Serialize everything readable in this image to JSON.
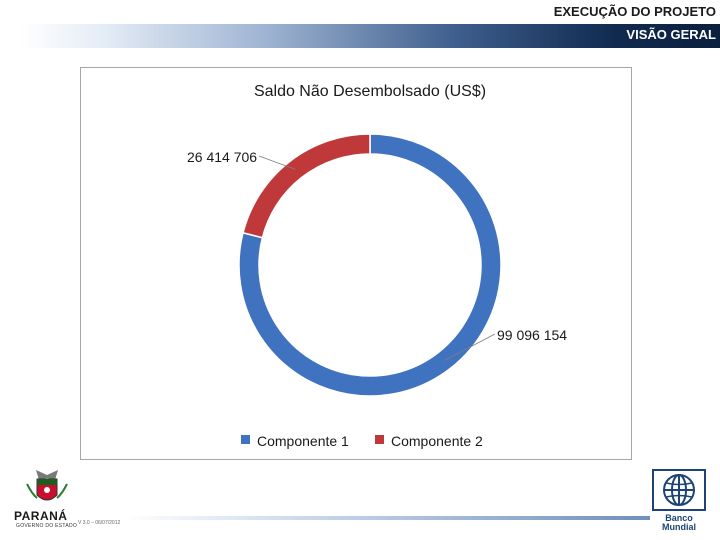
{
  "header": {
    "title": "EXECUÇÃO DO PROJETO",
    "subtitle": "VISÃO GERAL"
  },
  "footer": {
    "left_logo_name": "PARANÁ",
    "left_logo_sub": "GOVERNO DO ESTADO",
    "version": "V 3.0 – 06/07/2012",
    "right_logo_line1": "Banco",
    "right_logo_line2": "Mundial"
  },
  "colors": {
    "componente_1": "#3f72bf",
    "componente_2": "#c0393a",
    "header_dark": "#0b1f3d"
  },
  "chart_data": {
    "type": "pie",
    "variant": "doughnut",
    "title": "Saldo Não Desembolsado (US$)",
    "series": [
      {
        "name": "Componente 1",
        "value": 99096154,
        "label": "99 096 154"
      },
      {
        "name": "Componente 2",
        "value": 26414706,
        "label": "26 414 706"
      }
    ],
    "legend_position": "bottom"
  }
}
